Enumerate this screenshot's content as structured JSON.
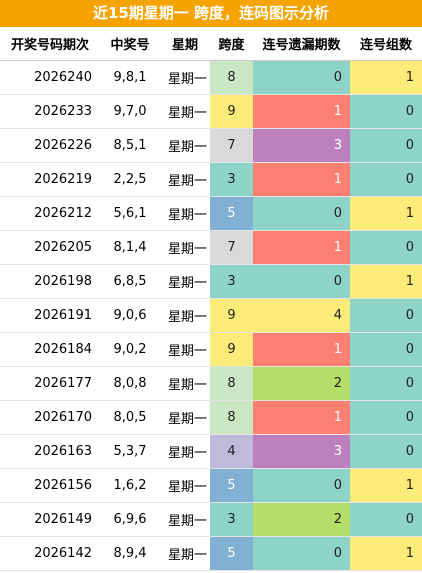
{
  "title": "近15期星期一 跨度，连码图示分析",
  "table": {
    "header": [
      "开奖号码期次",
      "中奖号",
      "星期",
      "跨度",
      "连号遗漏期数",
      "连号组数"
    ],
    "rows": [
      [
        "2026240",
        "9,8,1",
        "星期一",
        "8",
        "0",
        "1"
      ],
      [
        "2026233",
        "9,7,0",
        "星期一",
        "9",
        "1",
        "0"
      ],
      [
        "2026226",
        "8,5,1",
        "星期一",
        "7",
        "3",
        "0"
      ],
      [
        "2026219",
        "2,2,5",
        "星期一",
        "3",
        "1",
        "0"
      ],
      [
        "2026212",
        "5,6,1",
        "星期一",
        "5",
        "0",
        "1"
      ],
      [
        "2026205",
        "8,1,4",
        "星期一",
        "7",
        "1",
        "0"
      ],
      [
        "2026198",
        "6,8,5",
        "星期一",
        "3",
        "0",
        "1"
      ],
      [
        "2026191",
        "9,0,6",
        "星期一",
        "9",
        "4",
        "0"
      ],
      [
        "2026184",
        "9,0,2",
        "星期一",
        "9",
        "1",
        "0"
      ],
      [
        "2026177",
        "8,0,8",
        "星期一",
        "8",
        "2",
        "0"
      ],
      [
        "2026170",
        "8,0,5",
        "星期一",
        "8",
        "1",
        "0"
      ],
      [
        "2026163",
        "5,3,7",
        "星期一",
        "4",
        "3",
        "0"
      ],
      [
        "2026156",
        "1,6,2",
        "星期一",
        "5",
        "0",
        "1"
      ],
      [
        "2026149",
        "6,9,6",
        "星期一",
        "3",
        "2",
        "0"
      ],
      [
        "2026142",
        "8,9,4",
        "星期一",
        "5",
        "0",
        "1"
      ]
    ],
    "colors": [
      [
        "#c9e7c3",
        "#8dd3c7",
        "#fbeb78"
      ],
      [
        "#fbeb78",
        "#fb8072",
        "#8dd3c7"
      ],
      [
        "#d9d9d9",
        "#bc80bd",
        "#8dd3c7"
      ],
      [
        "#8dd3c7",
        "#fb8072",
        "#8dd3c7"
      ],
      [
        "#80b1d3",
        "#8dd3c7",
        "#fbeb78"
      ],
      [
        "#d9d9d9",
        "#fb8072",
        "#8dd3c7"
      ],
      [
        "#8dd3c7",
        "#8dd3c7",
        "#fbeb78"
      ],
      [
        "#fbeb78",
        "#fbeb78",
        "#8dd3c7"
      ],
      [
        "#fbeb78",
        "#fb8072",
        "#8dd3c7"
      ],
      [
        "#c9e7c3",
        "#b3de69",
        "#8dd3c7"
      ],
      [
        "#c9e7c3",
        "#fb8072",
        "#8dd3c7"
      ],
      [
        "#bebada",
        "#bc80bd",
        "#8dd3c7"
      ],
      [
        "#80b1d3",
        "#8dd3c7",
        "#fbeb78"
      ],
      [
        "#8dd3c7",
        "#b3de69",
        "#8dd3c7"
      ],
      [
        "#80b1d3",
        "#8dd3c7",
        "#fbeb78"
      ]
    ]
  }
}
